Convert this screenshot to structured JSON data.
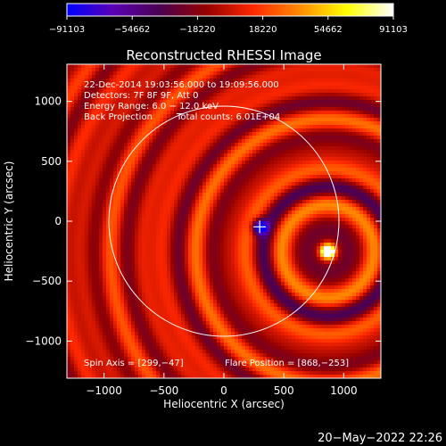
{
  "chart_data": {
    "type": "heatmap",
    "title": "Reconstructed RHESSI Image",
    "xlabel": "Heliocentric X (arcsec)",
    "ylabel": "Heliocentric Y (arcsec)",
    "xlim": [
      -1310,
      1310
    ],
    "ylim": [
      -1310,
      1310
    ],
    "x_ticks": [
      -1000,
      -500,
      0,
      500,
      1000
    ],
    "x_tick_labels": [
      "−1000",
      "−500",
      "0",
      "500",
      "1000"
    ],
    "y_ticks": [
      -1000,
      -500,
      0,
      500,
      1000
    ],
    "y_tick_labels": [
      "−1000",
      "−500",
      "0",
      "500",
      "1000"
    ],
    "colorbar": {
      "range": [
        -91103,
        91103
      ],
      "ticks": [
        -91103,
        -54662,
        -18220,
        18220,
        54662,
        91103
      ],
      "tick_labels": [
        "−91103",
        "−54662",
        "−18220",
        "18220",
        "54662",
        "91103"
      ],
      "colors": [
        "#0000ff",
        "#5a00b4",
        "#4b0050",
        "#960000",
        "#ff2800",
        "#ff8c00",
        "#ffff00",
        "#ffffff"
      ]
    },
    "annotations": {
      "time_range": "22-Dec-2014 19:03:56.000 to 19:09:56.000",
      "detectors": "Detectors: 7F 8F 9F, Att 0",
      "energy": "Energy Range: 6.0 − 12.0 keV",
      "method": "Back Projection",
      "counts": "Total counts: 6.01E+04",
      "spin_axis": "Spin Axis = [299,−47]",
      "flare_position": "Flare Position = [868,−253]"
    },
    "spin_axis": [
      299,
      -47
    ],
    "flare_position": [
      868,
      -253
    ],
    "flare_peak_value": 91103,
    "spin_center_value": -91103,
    "solar_limb_radius_arcsec": 960,
    "grid": false
  },
  "footer": {
    "timestamp": "20−May−2022 22:26"
  }
}
